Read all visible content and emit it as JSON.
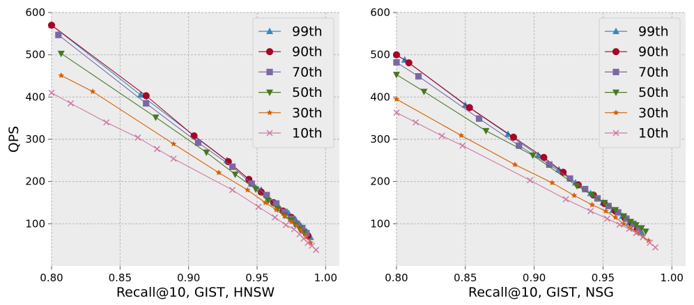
{
  "chart_data": [
    {
      "type": "line",
      "title": "",
      "xlabel": "Recall@10, GIST, HNSW",
      "ylabel": "QPS",
      "xlim": [
        0.8,
        1.01
      ],
      "ylim": [
        0,
        600
      ],
      "xticks": [
        "0.80",
        "0.85",
        "0.90",
        "0.95",
        "1.00"
      ],
      "yticks": [
        "100",
        "200",
        "300",
        "400",
        "500",
        "600"
      ],
      "grid": true,
      "legend": "top-right",
      "series": [
        {
          "name": "99th",
          "color": "#348ABD",
          "marker": "triangle-up",
          "x": [
            0.8,
            0.865,
            0.928,
            0.953,
            0.965,
            0.973,
            0.978,
            0.982,
            0.986,
            0.989
          ],
          "y": [
            570,
            405,
            250,
            180,
            145,
            125,
            110,
            95,
            82,
            68
          ]
        },
        {
          "name": "90th",
          "color": "#A60628",
          "marker": "circle",
          "x": [
            0.8,
            0.869,
            0.904,
            0.929,
            0.944,
            0.953,
            0.962,
            0.969,
            0.975,
            0.979,
            0.983,
            0.987
          ],
          "y": [
            570,
            403,
            308,
            247,
            205,
            175,
            150,
            130,
            115,
            100,
            85,
            72
          ]
        },
        {
          "name": "70th",
          "color": "#7A68A6",
          "marker": "square",
          "x": [
            0.805,
            0.869,
            0.907,
            0.932,
            0.946,
            0.957,
            0.964,
            0.97,
            0.975,
            0.979,
            0.983,
            0.986
          ],
          "y": [
            547,
            385,
            292,
            235,
            195,
            168,
            148,
            128,
            112,
            100,
            90,
            78
          ]
        },
        {
          "name": "50th",
          "color": "#467821",
          "marker": "triangle-down",
          "x": [
            0.807,
            0.876,
            0.913,
            0.934,
            0.949,
            0.958,
            0.965,
            0.97,
            0.975,
            0.978,
            0.981,
            0.984
          ],
          "y": [
            503,
            352,
            269,
            217,
            182,
            155,
            135,
            120,
            108,
            97,
            88,
            80
          ]
        },
        {
          "name": "30th",
          "color": "#D55E00",
          "marker": "star",
          "x": [
            0.807,
            0.83,
            0.889,
            0.922,
            0.943,
            0.956,
            0.964,
            0.97,
            0.975,
            0.979,
            0.982,
            0.986,
            0.989
          ],
          "y": [
            451,
            413,
            289,
            221,
            180,
            150,
            133,
            118,
            105,
            95,
            85,
            70,
            55
          ]
        },
        {
          "name": "10th",
          "color": "#CC79A7",
          "marker": "x",
          "x": [
            0.8,
            0.814,
            0.84,
            0.863,
            0.877,
            0.889,
            0.932,
            0.951,
            0.963,
            0.971,
            0.977,
            0.981,
            0.984,
            0.987,
            0.99,
            0.993
          ],
          "y": [
            410,
            385,
            340,
            304,
            277,
            254,
            180,
            140,
            115,
            97,
            87,
            75,
            65,
            55,
            48,
            38
          ]
        }
      ]
    },
    {
      "type": "line",
      "title": "",
      "xlabel": "Recall@10, GIST, NSG",
      "ylabel": "",
      "xlim": [
        0.8,
        1.01
      ],
      "ylim": [
        0,
        600
      ],
      "xticks": [
        "0.80",
        "0.85",
        "0.90",
        "0.95",
        "1.00"
      ],
      "yticks": [
        "100",
        "200",
        "300",
        "400",
        "500",
        "600"
      ],
      "grid": true,
      "legend": "top-right",
      "series": [
        {
          "name": "99th",
          "color": "#348ABD",
          "marker": "triangle-up",
          "x": [
            0.8,
            0.806,
            0.85,
            0.881,
            0.903,
            0.918,
            0.93,
            0.941,
            0.95,
            0.957,
            0.964,
            0.969,
            0.974,
            0.978
          ],
          "y": [
            500,
            488,
            381,
            312,
            262,
            228,
            197,
            172,
            150,
            132,
            118,
            103,
            90,
            80
          ]
        },
        {
          "name": "90th",
          "color": "#A60628",
          "marker": "circle",
          "x": [
            0.8,
            0.809,
            0.853,
            0.885,
            0.907,
            0.921,
            0.932,
            0.943,
            0.951,
            0.959,
            0.966,
            0.971,
            0.975
          ],
          "y": [
            500,
            481,
            375,
            305,
            257,
            222,
            192,
            168,
            148,
            130,
            113,
            100,
            88
          ]
        },
        {
          "name": "70th",
          "color": "#7A68A6",
          "marker": "square",
          "x": [
            0.8,
            0.816,
            0.86,
            0.889,
            0.911,
            0.926,
            0.937,
            0.946,
            0.954,
            0.961,
            0.967,
            0.972,
            0.976
          ],
          "y": [
            482,
            449,
            349,
            285,
            240,
            207,
            182,
            160,
            142,
            127,
            112,
            100,
            87
          ]
        },
        {
          "name": "50th",
          "color": "#467821",
          "marker": "triangle-down",
          "x": [
            0.8,
            0.82,
            0.865,
            0.899,
            0.931,
            0.942,
            0.951,
            0.959,
            0.965,
            0.97,
            0.974,
            0.978,
            0.981
          ],
          "y": [
            453,
            413,
            320,
            262,
            190,
            168,
            150,
            133,
            118,
            105,
            97,
            90,
            82
          ]
        },
        {
          "name": "30th",
          "color": "#D55E00",
          "marker": "star",
          "x": [
            0.8,
            0.847,
            0.886,
            0.913,
            0.929,
            0.942,
            0.952,
            0.959,
            0.965,
            0.97,
            0.975,
            0.979,
            0.983
          ],
          "y": [
            395,
            309,
            240,
            197,
            167,
            145,
            130,
            115,
            100,
            90,
            80,
            70,
            60
          ]
        },
        {
          "name": "10th",
          "color": "#CC79A7",
          "marker": "x",
          "x": [
            0.8,
            0.814,
            0.833,
            0.848,
            0.897,
            0.923,
            0.941,
            0.953,
            0.962,
            0.969,
            0.974,
            0.979,
            0.984,
            0.988
          ],
          "y": [
            363,
            340,
            308,
            285,
            203,
            158,
            130,
            112,
            98,
            88,
            78,
            68,
            55,
            44
          ]
        }
      ]
    }
  ]
}
